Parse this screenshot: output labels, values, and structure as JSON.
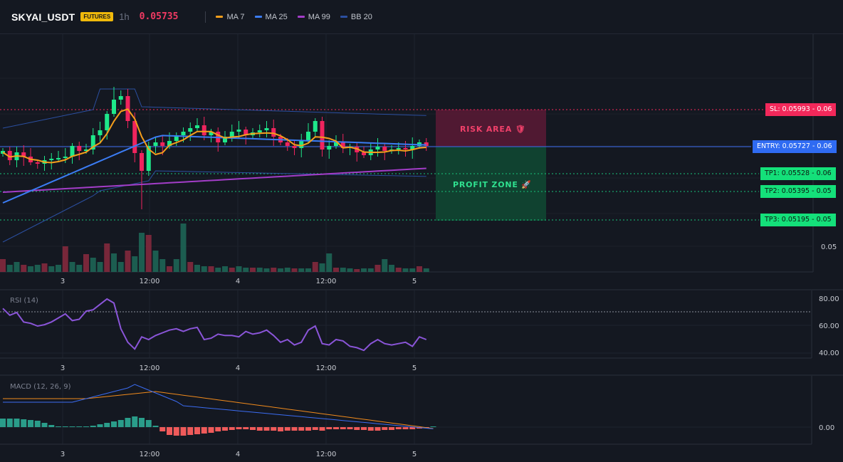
{
  "header": {
    "symbol": "SKYAI_USDT",
    "badge": "FUTURES",
    "timeframe": "1h",
    "price": "0.05735",
    "legend": [
      {
        "label": "MA 7",
        "color": "#f59e1b"
      },
      {
        "label": "MA 25",
        "color": "#3b7cf4"
      },
      {
        "label": "MA 99",
        "color": "#a33dc8"
      },
      {
        "label": "BB 20",
        "color": "#2b4fa0"
      }
    ]
  },
  "levels": {
    "sl": {
      "label": "SL: 0.05993",
      "value": "0.06",
      "color": "#f2285a"
    },
    "entry": {
      "label": "ENTRY: 0.05727",
      "value": "0.06",
      "color": "#2f6bf2"
    },
    "tp1": {
      "label": "TP1: 0.05528",
      "value": "0.06",
      "color": "#14e07a"
    },
    "tp2": {
      "label": "TP2: 0.05395",
      "value": "0.05",
      "color": "#14e07a"
    },
    "tp3": {
      "label": "TP3: 0.05195",
      "value": "0.05",
      "color": "#14e07a"
    }
  },
  "zones": {
    "risk": "RISK AREA 🛡",
    "profit": "PROFIT ZONE 🚀"
  },
  "main_axis": {
    "tick": "0.05"
  },
  "time_labels": [
    "3",
    "12:00",
    "4",
    "12:00",
    "5"
  ],
  "rsi": {
    "title": "RSI (14)",
    "ticks": [
      "80.00",
      "60.00",
      "40.00"
    ]
  },
  "macd": {
    "title": "MACD (12, 26, 9)",
    "tick": "0.00"
  },
  "colors": {
    "up": "#1ee88a",
    "down": "#f0245e",
    "macd_line": "#3b6cf2",
    "signal": "#f08a1c",
    "rsi": "#8a55d8"
  },
  "chart_data": [
    {
      "type": "candlestick",
      "title": "SKYAI_USDT",
      "x": [
        "3",
        "12:00",
        "4",
        "12:00",
        "5"
      ],
      "series": [
        {
          "name": "MA 7"
        },
        {
          "name": "MA 25"
        },
        {
          "name": "MA 99"
        },
        {
          "name": "BB 20"
        }
      ]
    },
    {
      "type": "line",
      "title": "RSI (14)",
      "ylim": [
        35,
        85
      ],
      "values": [
        73,
        68,
        70,
        63,
        62,
        60,
        61,
        63,
        66,
        69,
        64,
        65,
        71,
        72,
        76,
        80,
        77,
        58,
        48,
        43,
        52,
        50,
        53,
        55,
        57,
        58,
        56,
        58,
        59,
        50,
        51,
        54,
        53,
        53,
        52,
        56,
        54,
        55,
        57,
        53,
        48,
        50,
        46,
        48,
        57,
        60,
        47,
        46,
        50,
        49,
        45,
        44,
        42,
        47,
        50,
        47,
        46,
        47,
        48,
        45,
        52,
        50
      ],
      "series": []
    },
    {
      "type": "bar",
      "title": "MACD (12, 26, 9)",
      "values": [
        0.00012,
        0.00012,
        0.00012,
        0.00011,
        0.0001,
        9e-05,
        6e-05,
        3e-05,
        1e-05,
        1e-05,
        1e-05,
        1e-05,
        1e-05,
        2e-05,
        4e-05,
        6e-05,
        8e-05,
        0.0001,
        0.00013,
        0.00015,
        0.00013,
        0.0001,
        2e-05,
        -6e-05,
        -0.00011,
        -0.00012,
        -0.00012,
        -0.00011,
        -0.0001,
        -9e-05,
        -8e-05,
        -6e-05,
        -5e-05,
        -4e-05,
        -3e-05,
        -3e-05,
        -4e-05,
        -5e-05,
        -5e-05,
        -5e-05,
        -6e-05,
        -5e-05,
        -5e-05,
        -5e-05,
        -5e-05,
        -4e-05,
        -5e-05,
        -3e-05,
        -3e-05,
        -3e-05,
        -3e-05,
        -4e-05,
        -4e-05,
        -5e-05,
        -5e-05,
        -4e-05,
        -4e-05,
        -3e-05,
        -3e-05,
        -3e-05,
        -2e-05,
        -1e-05,
        1e-05
      ],
      "series": []
    }
  ]
}
